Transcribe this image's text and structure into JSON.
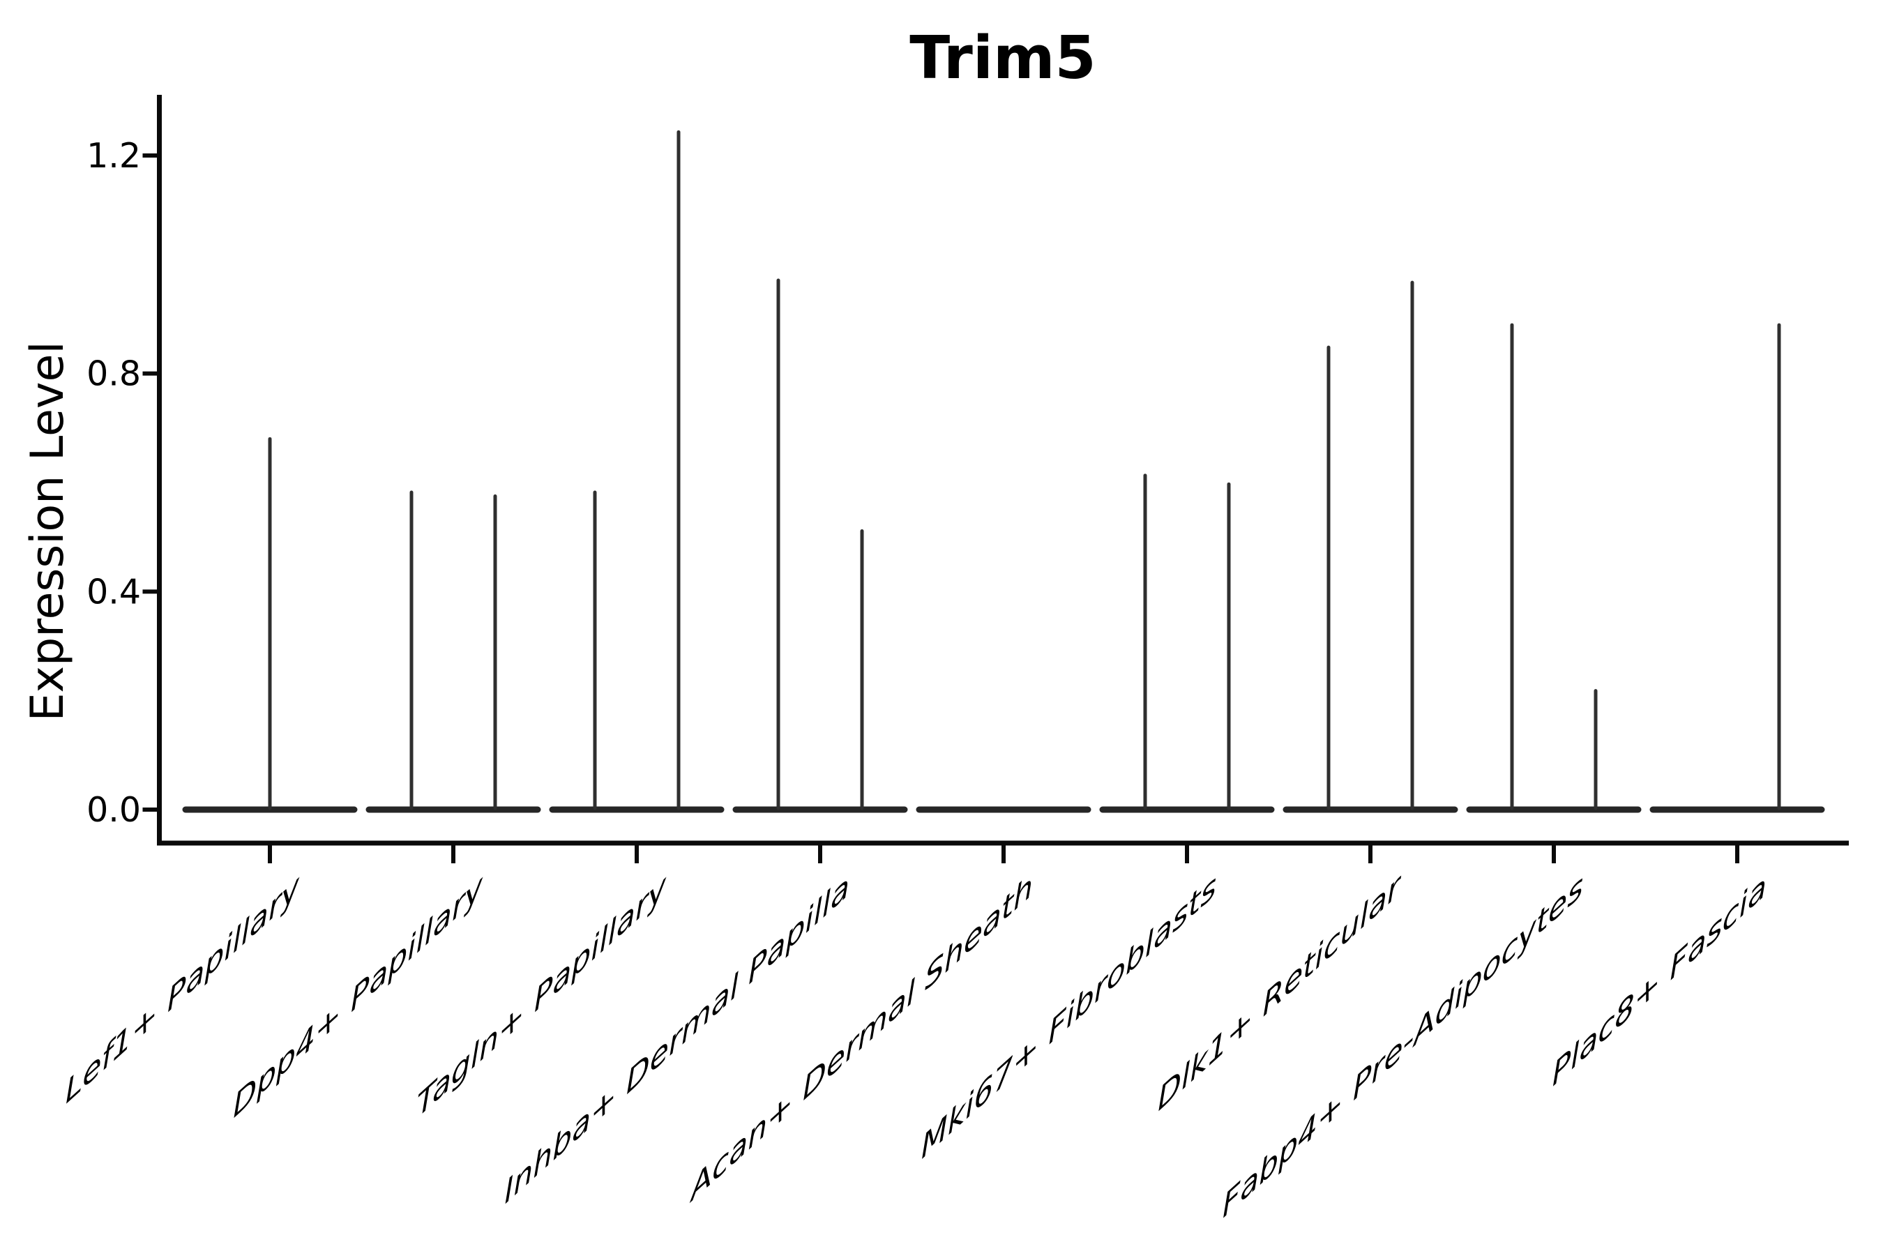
{
  "chart": {
    "title": "Trim5",
    "ylabel": "Expression Level"
  },
  "chart_data": {
    "type": "violin",
    "title": "Trim5",
    "xlabel": "",
    "ylabel": "Expression Level",
    "ylim": [
      -0.06,
      1.31
    ],
    "grid": false,
    "legend": false,
    "ytick_values": [
      0.0,
      0.4,
      0.8,
      1.2
    ],
    "ytick_labels": [
      "0.0",
      "0.4",
      "0.8",
      "1.2"
    ],
    "categories": [
      "Lef1+ Papillary",
      "Dpp4+ Papillary",
      "Tagln+ Papillary",
      "Inhba+ Dermal Papilla",
      "Acan+ Dermal Sheath",
      "Mki67+ Fibroblasts",
      "Dlk1+ Reticular",
      "Fabp4+ Pre-Adipocytes",
      "Plac8+ Fascia"
    ],
    "groups": [
      {
        "label": "Lef1+ Papillary",
        "violins": [
          {
            "position": "center",
            "max": 0.68
          }
        ]
      },
      {
        "label": "Dpp4+ Papillary",
        "violins": [
          {
            "position": "left",
            "max": 0.582
          },
          {
            "position": "right",
            "max": 0.575
          }
        ]
      },
      {
        "label": "Tagln+ Papillary",
        "violins": [
          {
            "position": "left",
            "max": 0.582
          },
          {
            "position": "right",
            "max": 1.243
          }
        ]
      },
      {
        "label": "Inhba+ Dermal Papilla",
        "violins": [
          {
            "position": "left",
            "max": 0.971
          },
          {
            "position": "right",
            "max": 0.511
          }
        ]
      },
      {
        "label": "Acan+ Dermal Sheath",
        "violins": []
      },
      {
        "label": "Mki67+ Fibroblasts",
        "violins": [
          {
            "position": "left",
            "max": 0.613
          },
          {
            "position": "right",
            "max": 0.597
          }
        ]
      },
      {
        "label": "Dlk1+ Reticular",
        "violins": [
          {
            "position": "left",
            "max": 0.848
          },
          {
            "position": "right",
            "max": 0.967
          }
        ]
      },
      {
        "label": "Fabp4+ Pre-Adipocytes",
        "violins": [
          {
            "position": "left",
            "max": 0.889
          },
          {
            "position": "right",
            "max": 0.218
          }
        ]
      },
      {
        "label": "Plac8+ Fascia",
        "violins": [
          {
            "position": "right",
            "max": 0.889
          }
        ]
      }
    ],
    "baseline_value": 0.0,
    "colors": {
      "axis": "#0a0a0a",
      "text": "#000000",
      "violin_spike": "#2f2f2f",
      "violin_baseline": "#262626",
      "background": "#ffffff"
    }
  }
}
